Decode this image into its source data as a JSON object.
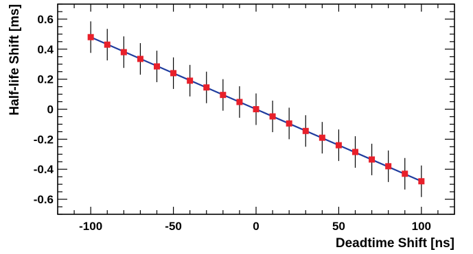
{
  "chart_data": {
    "type": "scatter",
    "title": "",
    "xlabel": "Deadtime Shift [ns]",
    "ylabel": "Half-life Shift [ms]",
    "xlim": [
      -120,
      120
    ],
    "ylim": [
      -0.7,
      0.7
    ],
    "x_ticks": [
      -100,
      -50,
      0,
      50,
      100
    ],
    "x_tick_labels": [
      "-100",
      "-50",
      "0",
      "50",
      "100"
    ],
    "y_ticks": [
      -0.6,
      -0.4,
      -0.2,
      0,
      0.2,
      0.4,
      0.6
    ],
    "y_tick_labels": [
      "-0.6",
      "-0.4",
      "-0.2",
      "0",
      "0.2",
      "0.4",
      "0.6"
    ],
    "grid": false,
    "legend": "none",
    "series": [
      {
        "x": [
          -100,
          -90,
          -80,
          -70,
          -60,
          -50,
          -40,
          -30,
          -20,
          -10,
          0,
          10,
          20,
          30,
          40,
          50,
          60,
          70,
          80,
          90,
          100
        ],
        "y": [
          0.48,
          0.43,
          0.38,
          0.335,
          0.285,
          0.24,
          0.19,
          0.145,
          0.095,
          0.048,
          0.0,
          -0.048,
          -0.095,
          -0.145,
          -0.19,
          -0.24,
          -0.285,
          -0.335,
          -0.38,
          -0.43,
          -0.48
        ],
        "yerr": [
          0.105,
          0.105,
          0.105,
          0.105,
          0.105,
          0.105,
          0.105,
          0.105,
          0.105,
          0.105,
          0.105,
          0.105,
          0.105,
          0.105,
          0.105,
          0.105,
          0.105,
          0.105,
          0.105,
          0.105,
          0.105
        ],
        "marker_color": "#e8202a",
        "errorbar_color": "#000000"
      }
    ],
    "fit_line": {
      "x": [
        -100,
        100
      ],
      "y": [
        0.48,
        -0.48
      ],
      "color": "#1f3c9e"
    }
  }
}
